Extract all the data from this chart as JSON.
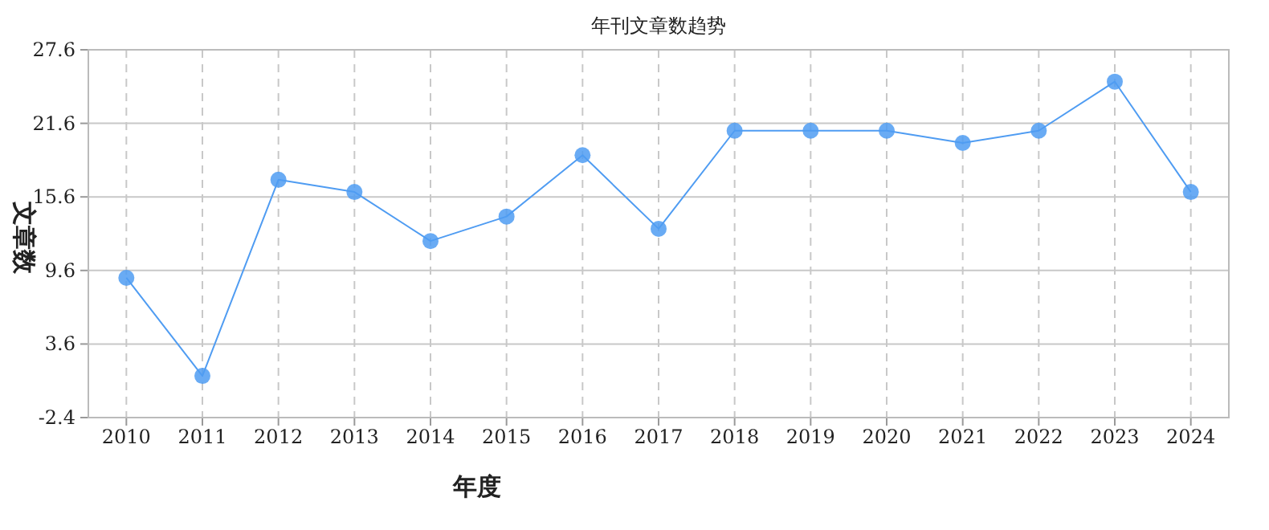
{
  "chart_data": {
    "type": "line",
    "title": "年刊文章数趋势",
    "xlabel": "年度",
    "ylabel": "文章数",
    "categories": [
      "2010",
      "2011",
      "2012",
      "2013",
      "2014",
      "2015",
      "2016",
      "2017",
      "2018",
      "2019",
      "2020",
      "2021",
      "2022",
      "2023",
      "2024"
    ],
    "values": [
      9,
      1,
      17,
      16,
      12,
      14,
      19,
      13,
      21,
      21,
      21,
      20,
      21,
      25,
      16
    ],
    "color": "#4f9cf2",
    "ylim": [
      -2.4,
      27.6
    ],
    "yticks": [
      -2.4,
      3.6,
      9.6,
      15.6,
      21.6,
      27.6
    ],
    "grid": true,
    "marker": "circle",
    "line_style": "solid"
  }
}
